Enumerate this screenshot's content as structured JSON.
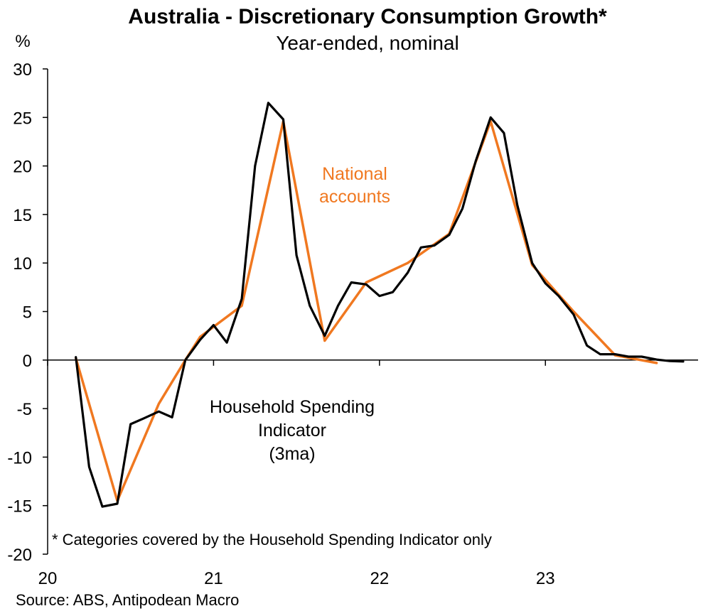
{
  "chart_data": {
    "type": "line",
    "title": "Australia - Discretionary Consumption Growth*",
    "subtitle": "Year-ended, nominal",
    "ylabel": "%",
    "ylim": [
      -20,
      30
    ],
    "yticks": [
      30,
      25,
      20,
      15,
      10,
      5,
      0,
      -5,
      -10,
      -15,
      -20
    ],
    "xlim": [
      2020.0,
      2023.92
    ],
    "xticks": [
      {
        "label": "20",
        "x": 2020.0
      },
      {
        "label": "21",
        "x": 2021.0
      },
      {
        "label": "22",
        "x": 2022.0
      },
      {
        "label": "23",
        "x": 2023.0
      }
    ],
    "series": [
      {
        "name": "National accounts",
        "color": "#f07820",
        "points": [
          [
            2020.17,
            0.2
          ],
          [
            2020.42,
            -14.5
          ],
          [
            2020.67,
            -4.5
          ],
          [
            2020.83,
            0.0
          ],
          [
            2020.92,
            2.4
          ],
          [
            2021.17,
            5.6
          ],
          [
            2021.42,
            24.6
          ],
          [
            2021.67,
            2.0
          ],
          [
            2021.92,
            8.0
          ],
          [
            2022.17,
            10.0
          ],
          [
            2022.42,
            13.0
          ],
          [
            2022.67,
            24.6
          ],
          [
            2022.92,
            9.8
          ],
          [
            2023.17,
            5.0
          ],
          [
            2023.42,
            0.5
          ],
          [
            2023.67,
            -0.3
          ]
        ]
      },
      {
        "name": "Household Spending Indicator (3ma)",
        "color": "#000000",
        "points": [
          [
            2020.17,
            0.3
          ],
          [
            2020.25,
            -11.0
          ],
          [
            2020.33,
            -15.1
          ],
          [
            2020.42,
            -14.8
          ],
          [
            2020.5,
            -6.6
          ],
          [
            2020.58,
            -6.0
          ],
          [
            2020.67,
            -5.3
          ],
          [
            2020.75,
            -5.9
          ],
          [
            2020.83,
            0.0
          ],
          [
            2020.92,
            2.1
          ],
          [
            2021.0,
            3.6
          ],
          [
            2021.08,
            1.8
          ],
          [
            2021.17,
            6.3
          ],
          [
            2021.25,
            20.0
          ],
          [
            2021.33,
            26.5
          ],
          [
            2021.42,
            24.8
          ],
          [
            2021.5,
            10.8
          ],
          [
            2021.58,
            5.6
          ],
          [
            2021.67,
            2.5
          ],
          [
            2021.75,
            5.6
          ],
          [
            2021.83,
            8.0
          ],
          [
            2021.92,
            7.8
          ],
          [
            2022.0,
            6.6
          ],
          [
            2022.08,
            7.0
          ],
          [
            2022.17,
            9.0
          ],
          [
            2022.25,
            11.6
          ],
          [
            2022.33,
            11.8
          ],
          [
            2022.42,
            12.9
          ],
          [
            2022.5,
            15.6
          ],
          [
            2022.58,
            20.5
          ],
          [
            2022.67,
            25.0
          ],
          [
            2022.75,
            23.4
          ],
          [
            2022.83,
            16.0
          ],
          [
            2022.92,
            10.0
          ],
          [
            2023.0,
            7.9
          ],
          [
            2023.08,
            6.6
          ],
          [
            2023.17,
            4.7
          ],
          [
            2023.25,
            1.5
          ],
          [
            2023.33,
            0.6
          ],
          [
            2023.42,
            0.6
          ],
          [
            2023.5,
            0.35
          ],
          [
            2023.58,
            0.35
          ],
          [
            2023.67,
            0.05
          ],
          [
            2023.75,
            -0.1
          ],
          [
            2023.83,
            -0.15
          ]
        ]
      }
    ],
    "annotations": {
      "national_accounts": [
        "National",
        "accounts"
      ],
      "hsi": [
        "Household Spending",
        "Indicator",
        "(3ma)"
      ],
      "footnote": "* Categories covered by the Household Spending Indicator only",
      "source": "Source: ABS, Antipodean Macro"
    }
  }
}
